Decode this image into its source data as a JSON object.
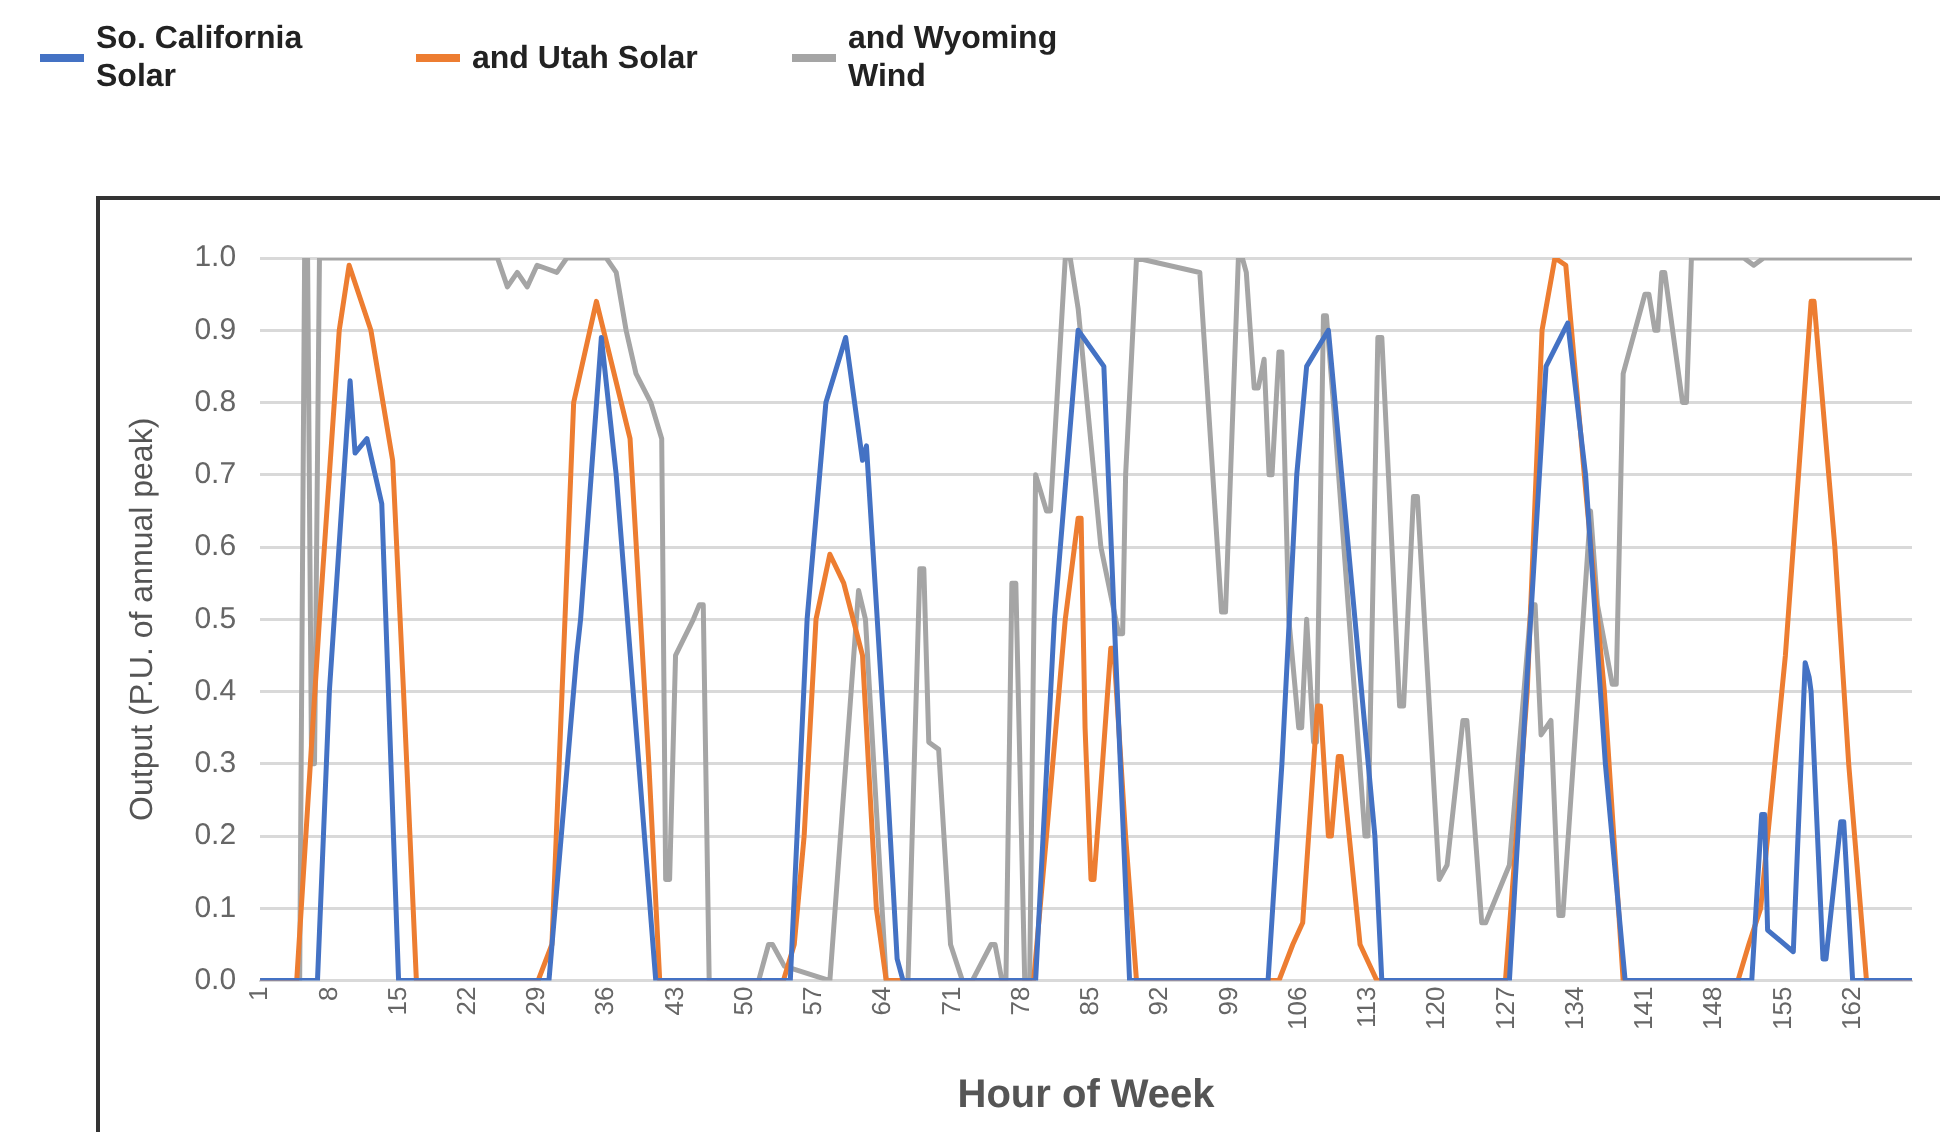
{
  "chart_data": {
    "type": "line",
    "xlabel": "Hour of Week",
    "ylabel": "Output (P.U. of annual peak)",
    "xlim": [
      1,
      168
    ],
    "xticks": [
      1,
      8,
      15,
      22,
      29,
      36,
      43,
      50,
      57,
      64,
      71,
      78,
      85,
      92,
      99,
      106,
      113,
      120,
      127,
      134,
      141,
      148,
      155,
      162
    ],
    "ylim": [
      0,
      1
    ],
    "yticks": [
      {
        "value": 0,
        "label": "0.0"
      },
      {
        "value": 0.1,
        "label": "0.1"
      },
      {
        "value": 0.2,
        "label": "0.2"
      },
      {
        "value": 0.3,
        "label": "0.3"
      },
      {
        "value": 0.4,
        "label": "0.4"
      },
      {
        "value": 0.5,
        "label": "0.5"
      },
      {
        "value": 0.6,
        "label": "0.6"
      },
      {
        "value": 0.7,
        "label": "0.7"
      },
      {
        "value": 0.8,
        "label": "0.8"
      },
      {
        "value": 0.9,
        "label": "0.9"
      },
      {
        "value": 1,
        "label": "1.0"
      }
    ],
    "grid": "y",
    "legend": "top left",
    "marker": "none",
    "line_style": "solid",
    "series": [
      {
        "name": "So. California Solar",
        "color": "#4472c4",
        "x": [
          1,
          6.8,
          8,
          10.1,
          10.6,
          11.8,
          13.3,
          15,
          30.2,
          33,
          33.4,
          35.5,
          37,
          41,
          54.6,
          56.3,
          58.2,
          60.2,
          61.9,
          62.3,
          64.3,
          65.4,
          66,
          79.4,
          81.3,
          83.7,
          86.3,
          87.5,
          88.9,
          102.9,
          104.3,
          105.8,
          106.8,
          109,
          113.7,
          114.4,
          127.3,
          129,
          131,
          133.2,
          135,
          137,
          139,
          151.8,
          152.8,
          153.1,
          153.4,
          156,
          157.2,
          157.6,
          157.8,
          159,
          159.3,
          160.8,
          161.1,
          162,
          168
        ],
        "values": [
          0,
          0,
          0.4,
          0.83,
          0.73,
          0.75,
          0.66,
          0,
          0,
          0.45,
          0.5,
          0.89,
          0.7,
          0,
          0,
          0.5,
          0.8,
          0.89,
          0.72,
          0.74,
          0.3,
          0.03,
          0,
          0,
          0.5,
          0.9,
          0.85,
          0.45,
          0,
          0,
          0.3,
          0.7,
          0.85,
          0.9,
          0.2,
          0,
          0,
          0.4,
          0.85,
          0.91,
          0.7,
          0.3,
          0,
          0,
          0.23,
          0.23,
          0.07,
          0.04,
          0.44,
          0.42,
          0.4,
          0.03,
          0.03,
          0.22,
          0.22,
          0,
          0
        ]
      },
      {
        "name": "and Utah Solar",
        "color": "#ed7d31",
        "x": [
          1,
          4.7,
          7,
          9,
          10,
          12.2,
          14.4,
          15.5,
          16.8,
          29.1,
          30.5,
          32.7,
          35,
          38.4,
          40.3,
          41.4,
          53.9,
          55,
          56,
          57.2,
          58.6,
          60,
          61.9,
          63.3,
          64.3,
          79.2,
          80.5,
          82.4,
          83.7,
          84,
          84.4,
          85,
          85.3,
          85.9,
          87,
          87.3,
          88.5,
          89.6,
          104,
          105.4,
          106.4,
          107.9,
          108.2,
          109,
          109.3,
          110,
          110.3,
          112.2,
          113.9,
          126.9,
          128,
          129.1,
          130.6,
          131.9,
          133,
          135,
          136.9,
          138.8,
          150.4,
          151.5,
          152.7,
          155.2,
          157.8,
          158.1,
          160.2,
          161.6,
          163.4,
          168
        ],
        "values": [
          0,
          0,
          0.5,
          0.9,
          0.99,
          0.9,
          0.72,
          0.4,
          0,
          0,
          0.05,
          0.8,
          0.94,
          0.75,
          0.3,
          0,
          0,
          0.05,
          0.2,
          0.5,
          0.59,
          0.55,
          0.45,
          0.1,
          0,
          0,
          0.2,
          0.5,
          0.64,
          0.64,
          0.35,
          0.14,
          0.14,
          0.25,
          0.46,
          0.46,
          0.2,
          0,
          0,
          0.05,
          0.08,
          0.38,
          0.38,
          0.2,
          0.2,
          0.31,
          0.31,
          0.05,
          0,
          0,
          0.2,
          0.4,
          0.9,
          1,
          0.99,
          0.68,
          0.4,
          0,
          0,
          0.05,
          0.1,
          0.45,
          0.94,
          0.94,
          0.6,
          0.3,
          0,
          0
        ]
      },
      {
        "name": "and Wyoming Wind",
        "color": "#a5a5a5",
        "x": [
          1,
          5,
          5.5,
          5.8,
          6.2,
          6.5,
          7,
          25,
          26,
          27,
          28,
          29,
          31,
          32,
          36,
          37,
          38,
          39,
          40.5,
          41.6,
          42,
          42.4,
          43,
          44.8,
          45.4,
          45.8,
          46.4,
          51.4,
          52.4,
          52.8,
          54,
          58.6,
          61.5,
          62.2,
          64.3,
          66.5,
          67.7,
          68.1,
          68.6,
          69.6,
          70.8,
          72,
          73,
          74.9,
          75.3,
          76,
          76.4,
          77,
          77.4,
          78.3,
          78.8,
          79.4,
          80.5,
          80.9,
          82.4,
          82.9,
          83.7,
          86,
          87.8,
          88.2,
          88.5,
          89.6,
          96,
          98.2,
          98.6,
          99.9,
          100.3,
          100.7,
          101.5,
          101.9,
          102.5,
          103,
          103.3,
          104,
          104.3,
          105,
          106,
          106.3,
          106.8,
          107.5,
          107.8,
          108.5,
          108.8,
          109.5,
          112.7,
          113,
          114,
          114.4,
          116.2,
          116.6,
          117.6,
          118,
          120.2,
          121,
          122.6,
          123,
          124.5,
          124.9,
          127.3,
          129.5,
          129.9,
          130.5,
          131.5,
          132.3,
          132.7,
          135.5,
          136.2,
          137.7,
          138.1,
          138.8,
          141,
          141.4,
          142,
          142.3,
          142.7,
          143,
          144.8,
          145.2,
          145.7,
          151,
          152,
          153,
          168
        ],
        "values": [
          0,
          0,
          1,
          1,
          0.3,
          0.3,
          1,
          1,
          0.96,
          0.98,
          0.96,
          0.99,
          0.98,
          1,
          1,
          0.98,
          0.9,
          0.84,
          0.8,
          0.75,
          0.14,
          0.14,
          0.45,
          0.5,
          0.52,
          0.52,
          0,
          0,
          0.05,
          0.05,
          0.02,
          0,
          0.54,
          0.5,
          0,
          0,
          0.57,
          0.57,
          0.33,
          0.32,
          0.05,
          0,
          0,
          0.05,
          0.05,
          0,
          0,
          0.55,
          0.55,
          0,
          0,
          0.7,
          0.65,
          0.65,
          1,
          1,
          0.93,
          0.6,
          0.48,
          0.48,
          0.7,
          1,
          0.98,
          0.51,
          0.51,
          1,
          1,
          0.98,
          0.82,
          0.82,
          0.86,
          0.7,
          0.7,
          0.87,
          0.87,
          0.5,
          0.35,
          0.35,
          0.5,
          0.33,
          0.33,
          0.92,
          0.92,
          0.8,
          0.2,
          0.2,
          0.89,
          0.89,
          0.38,
          0.38,
          0.67,
          0.67,
          0.14,
          0.16,
          0.36,
          0.36,
          0.08,
          0.08,
          0.16,
          0.52,
          0.52,
          0.34,
          0.36,
          0.09,
          0.09,
          0.65,
          0.52,
          0.41,
          0.41,
          0.84,
          0.95,
          0.95,
          0.9,
          0.9,
          0.98,
          0.98,
          0.8,
          0.8,
          1,
          1,
          0.99,
          1,
          1
        ]
      }
    ]
  }
}
